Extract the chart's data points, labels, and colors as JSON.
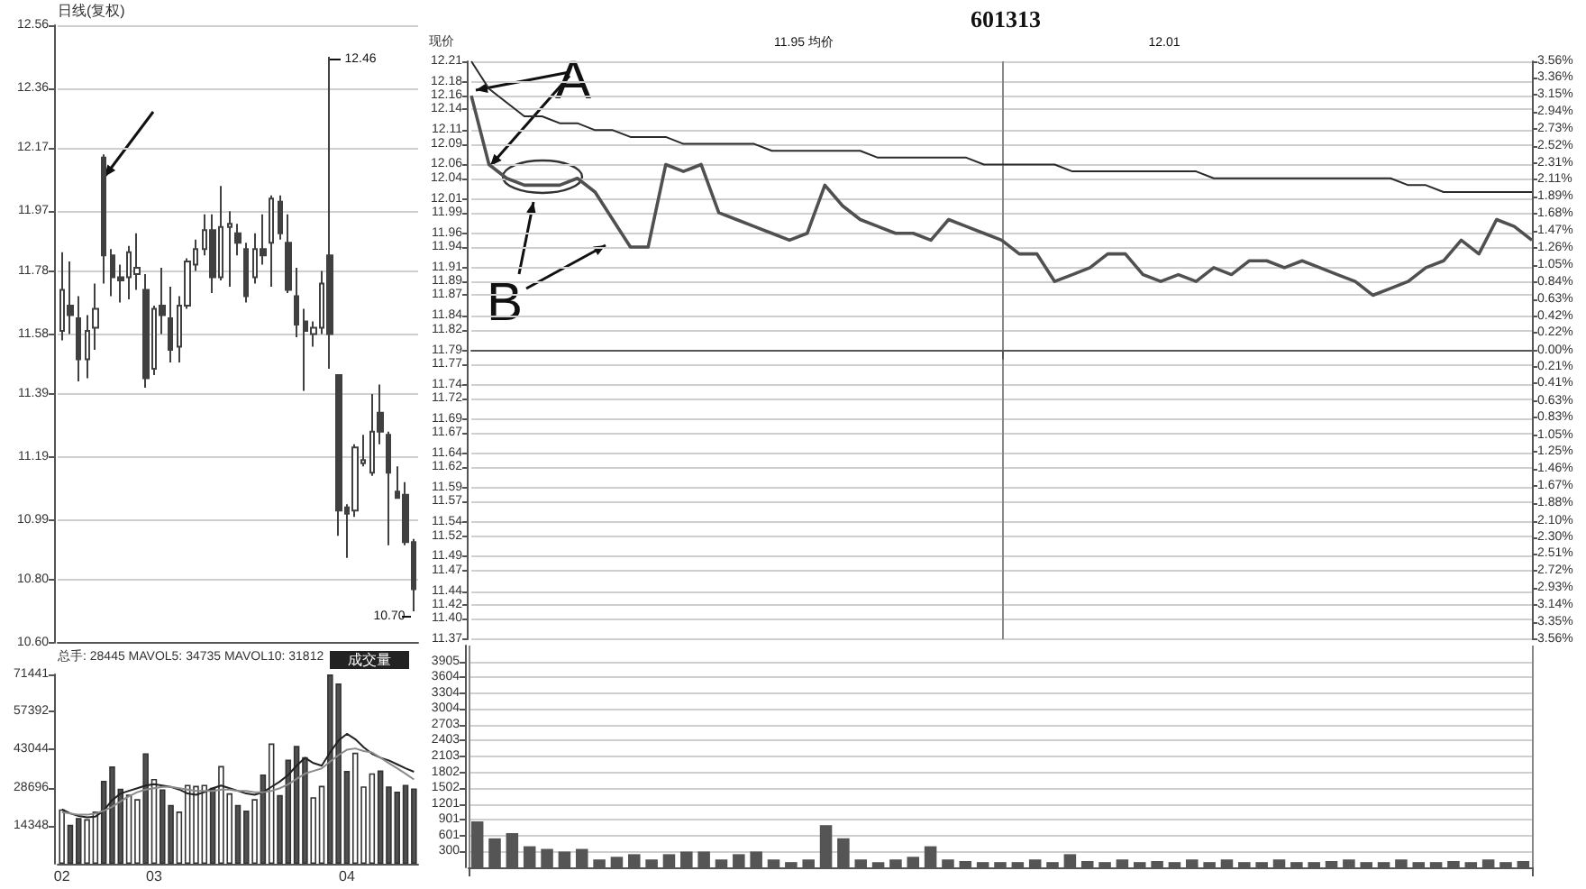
{
  "chart_data": [
    {
      "type": "candlestick",
      "title": "日线(复权)",
      "tick_labels": "y",
      "grid": "y",
      "categories": [
        "02",
        null,
        null,
        null,
        null,
        null,
        null,
        null,
        null,
        null,
        null,
        "03",
        null,
        null,
        null,
        null,
        null,
        null,
        null,
        null,
        null,
        null,
        null,
        null,
        null,
        null,
        null,
        null,
        null,
        null,
        null,
        null,
        null,
        null,
        "04",
        null,
        null,
        null,
        null,
        null,
        null,
        null,
        null
      ],
      "ylim": [
        10.6,
        12.56
      ],
      "yticks": [
        {
          "value": 10.6,
          "label": "10.60"
        },
        {
          "value": 10.8,
          "label": "10.80"
        },
        10.99,
        11.19,
        11.39,
        11.58,
        11.78,
        11.97,
        12.17,
        12.36,
        12.56
      ],
      "annotations": [
        "12.46",
        "10.70"
      ],
      "series": [
        {
          "type": "candlestick",
          "color": "#404040",
          "ohlc": [
            [
              11.59,
              11.84,
              11.56,
              11.72
            ],
            [
              11.67,
              11.81,
              11.58,
              11.64
            ],
            [
              11.63,
              11.7,
              11.43,
              11.5
            ],
            [
              11.5,
              11.64,
              11.44,
              11.59
            ],
            [
              11.6,
              11.74,
              11.53,
              11.66
            ],
            [
              12.14,
              12.15,
              11.74,
              11.83
            ],
            [
              11.83,
              11.85,
              11.7,
              11.76
            ],
            [
              11.76,
              11.8,
              11.68,
              11.75
            ],
            [
              11.76,
              11.86,
              11.69,
              11.84
            ],
            [
              11.77,
              11.9,
              11.72,
              11.79
            ],
            [
              11.72,
              11.77,
              11.41,
              11.44
            ],
            [
              11.47,
              11.67,
              11.45,
              11.66
            ],
            [
              11.67,
              11.79,
              11.58,
              11.64
            ],
            [
              11.63,
              11.73,
              11.49,
              11.53
            ],
            [
              11.54,
              11.7,
              11.49,
              11.67
            ],
            [
              11.67,
              11.82,
              11.66,
              11.81
            ],
            [
              11.8,
              11.88,
              11.78,
              11.85
            ],
            [
              11.85,
              11.96,
              11.83,
              11.91
            ],
            [
              11.91,
              11.96,
              11.71,
              11.76
            ],
            [
              11.76,
              12.05,
              11.75,
              11.92
            ],
            [
              11.92,
              11.97,
              11.73,
              11.93
            ],
            [
              11.9,
              11.93,
              11.83,
              11.87
            ],
            [
              11.85,
              11.87,
              11.68,
              11.7
            ],
            [
              11.76,
              11.9,
              11.74,
              11.85
            ],
            [
              11.85,
              11.96,
              11.8,
              11.83
            ],
            [
              11.87,
              12.02,
              11.73,
              12.01
            ],
            [
              12.0,
              12.02,
              11.88,
              11.9
            ],
            [
              11.87,
              11.96,
              11.71,
              11.72
            ],
            [
              11.7,
              11.79,
              11.57,
              11.61
            ],
            [
              11.62,
              11.66,
              11.4,
              11.59
            ],
            [
              11.58,
              11.62,
              11.54,
              11.6
            ],
            [
              11.6,
              11.78,
              11.58,
              11.74
            ],
            [
              11.83,
              12.46,
              11.47,
              11.58
            ],
            [
              11.45,
              11.45,
              10.94,
              11.02
            ],
            [
              11.03,
              11.04,
              10.87,
              11.01
            ],
            [
              11.02,
              11.23,
              11.0,
              11.22
            ],
            [
              11.17,
              11.26,
              11.16,
              11.18
            ],
            [
              11.14,
              11.39,
              11.13,
              11.27
            ],
            [
              11.33,
              11.42,
              11.23,
              11.27
            ],
            [
              11.26,
              11.27,
              10.91,
              11.14
            ],
            [
              11.08,
              11.16,
              11.06,
              11.06
            ],
            [
              11.07,
              11.11,
              10.91,
              10.92
            ],
            [
              10.92,
              10.93,
              10.7,
              10.77
            ]
          ]
        }
      ]
    },
    {
      "type": "bar",
      "subtitle": "总手: 28445 MAVOL5: 34735 MAVOL10: 31812",
      "annotations": [
        "成交量"
      ],
      "marker": "none",
      "categories": [
        "02",
        null,
        null,
        null,
        null,
        null,
        null,
        null,
        null,
        null,
        null,
        "03",
        null,
        null,
        null,
        null,
        null,
        null,
        null,
        null,
        null,
        null,
        null,
        null,
        null,
        null,
        null,
        null,
        null,
        null,
        null,
        null,
        null,
        null,
        "04",
        null,
        null,
        null,
        null,
        null,
        null,
        null,
        null
      ],
      "ylim": [
        0,
        71441
      ],
      "yticks": [
        14348,
        28696,
        43044,
        57392,
        71441
      ],
      "series": [
        {
          "type": "bar",
          "colors": [
            "#ffffff",
            "#505050",
            "#505050",
            "#ffffff",
            "#ffffff",
            "#505050",
            "#505050",
            "#505050",
            "#ffffff",
            "#ffffff",
            "#505050",
            "#ffffff",
            "#505050",
            "#505050",
            "#ffffff",
            "#ffffff",
            "#ffffff",
            "#ffffff",
            "#505050",
            "#ffffff",
            "#ffffff",
            "#505050",
            "#505050",
            "#ffffff",
            "#505050",
            "#ffffff",
            "#505050",
            "#505050",
            "#505050",
            "#505050",
            "#ffffff",
            "#ffffff",
            "#505050",
            "#505050",
            "#505050",
            "#ffffff",
            "#ffffff",
            "#ffffff",
            "#505050",
            "#505050",
            "#505050",
            "#505050",
            "#505050"
          ],
          "values": [
            20500,
            14700,
            17300,
            16800,
            19700,
            31300,
            36700,
            28300,
            26100,
            24400,
            41700,
            32000,
            28100,
            22200,
            19700,
            29800,
            29400,
            29800,
            28700,
            36900,
            26600,
            22200,
            20100,
            24400,
            33700,
            45400,
            25900,
            39300,
            44500,
            40200,
            25100,
            29400,
            71400,
            68000,
            35000,
            41900,
            29200,
            34100,
            35200,
            29200,
            27200,
            29800,
            28400
          ]
        },
        {
          "type": "line",
          "color": "#222222",
          "values": [
            20500,
            19000,
            18000,
            17500,
            17800,
            20000,
            24000,
            26500,
            27500,
            28500,
            29500,
            30000,
            29500,
            29000,
            28000,
            26500,
            26000,
            27000,
            28500,
            29500,
            28500,
            27500,
            26500,
            26000,
            27000,
            29000,
            31000,
            33500,
            37000,
            40000,
            38000,
            37000,
            42000,
            46500,
            49000,
            47000,
            44000,
            41500,
            40000,
            39000,
            37500,
            36000,
            34700
          ]
        },
        {
          "type": "line",
          "color": "#8a8a8a",
          "values": [
            19500,
            19000,
            18500,
            18500,
            19000,
            20000,
            21500,
            23500,
            25500,
            27000,
            28000,
            28500,
            29000,
            29000,
            28500,
            28000,
            27500,
            27500,
            27500,
            28000,
            28000,
            27500,
            27500,
            27000,
            27000,
            27500,
            28500,
            30000,
            32000,
            34000,
            35000,
            36000,
            38500,
            41000,
            43000,
            43500,
            42500,
            42000,
            40000,
            38000,
            36000,
            34000,
            31800
          ]
        }
      ]
    },
    {
      "type": "line",
      "title": "601313",
      "ylabel": "现价",
      "marker": "none",
      "grid": true,
      "annotations": [
        "11.95 均价",
        "12.01",
        "A",
        "B"
      ],
      "categories": [
        null,
        null,
        null,
        null,
        null,
        null,
        null,
        null,
        null,
        null,
        null,
        null,
        null,
        null,
        null,
        null,
        null,
        null,
        null,
        null,
        null,
        null,
        null,
        null,
        null,
        null,
        null,
        null,
        null,
        null,
        null,
        null,
        null,
        null,
        null,
        null,
        null,
        null,
        null,
        null,
        null,
        null,
        null,
        null,
        null,
        null,
        null,
        null,
        null,
        null,
        null,
        null,
        null,
        null,
        null,
        null,
        null,
        null,
        null,
        null,
        null
      ],
      "ylim": [
        11.37,
        12.21
      ],
      "yticks": [
        11.37,
        {
          "value": 11.4,
          "label": "11.40"
        },
        11.42,
        11.44,
        11.47,
        11.49,
        11.52,
        11.54,
        11.57,
        11.59,
        11.62,
        11.64,
        11.67,
        11.69,
        11.72,
        11.74,
        11.77,
        11.79,
        11.82,
        11.84,
        11.87,
        11.89,
        11.91,
        11.94,
        11.96,
        11.99,
        12.01,
        12.04,
        12.06,
        12.09,
        12.11,
        12.14,
        12.16,
        12.18,
        12.21
      ],
      "y2lim": [
        -3.56,
        3.56
      ],
      "y2ticks": [
        {
          "value": -3.56,
          "label": "3.56%"
        },
        {
          "value": -3.35,
          "label": "3.35%"
        },
        {
          "value": -3.14,
          "label": "3.14%"
        },
        {
          "value": -2.93,
          "label": "2.93%"
        },
        {
          "value": -2.72,
          "label": "2.72%"
        },
        {
          "value": -2.51,
          "label": "2.51%"
        },
        {
          "value": -2.3,
          "label": "2.30%"
        },
        {
          "value": -2.1,
          "label": "2.10%"
        },
        {
          "value": -1.88,
          "label": "1.88%"
        },
        {
          "value": -1.67,
          "label": "1.67%"
        },
        {
          "value": -1.46,
          "label": "1.46%"
        },
        {
          "value": -1.25,
          "label": "1.25%"
        },
        {
          "value": -1.05,
          "label": "1.05%"
        },
        {
          "value": -0.83,
          "label": "0.83%"
        },
        {
          "value": -0.63,
          "label": "0.63%"
        },
        {
          "value": -0.41,
          "label": "0.41%"
        },
        {
          "value": -0.21,
          "label": "0.21%"
        },
        {
          "value": 0,
          "label": "0.00%"
        },
        {
          "value": 0.22,
          "label": "0.22%"
        },
        {
          "value": 0.42,
          "label": "0.42%"
        },
        {
          "value": 0.63,
          "label": "0.63%"
        },
        {
          "value": 0.84,
          "label": "0.84%"
        },
        {
          "value": 1.05,
          "label": "1.05%"
        },
        {
          "value": 1.26,
          "label": "1.26%"
        },
        {
          "value": 1.47,
          "label": "1.47%"
        },
        {
          "value": 1.68,
          "label": "1.68%"
        },
        {
          "value": 1.89,
          "label": "1.89%"
        },
        {
          "value": 2.11,
          "label": "2.11%"
        },
        {
          "value": 2.31,
          "label": "2.31%"
        },
        {
          "value": 2.52,
          "label": "2.52%"
        },
        {
          "value": 2.73,
          "label": "2.73%"
        },
        {
          "value": 2.94,
          "label": "2.94%"
        },
        {
          "value": 3.15,
          "label": "3.15%"
        },
        {
          "value": 3.36,
          "label": "3.36%"
        },
        {
          "value": 3.56,
          "label": "3.56%"
        }
      ],
      "series": [
        {
          "color": "#505050",
          "values": [
            12.16,
            12.06,
            12.04,
            12.03,
            12.03,
            12.03,
            12.04,
            12.02,
            11.98,
            11.94,
            11.94,
            12.06,
            12.05,
            12.06,
            11.99,
            11.98,
            11.97,
            11.96,
            11.95,
            11.96,
            12.03,
            12.0,
            11.98,
            11.97,
            11.96,
            11.96,
            11.95,
            11.98,
            11.97,
            11.96,
            11.95,
            11.93,
            11.93,
            11.89,
            11.9,
            11.91,
            11.93,
            11.93,
            11.9,
            11.89,
            11.9,
            11.89,
            11.91,
            11.9,
            11.92,
            11.92,
            11.91,
            11.92,
            11.91,
            11.9,
            11.89,
            11.87,
            11.88,
            11.89,
            11.91,
            11.92,
            11.95,
            11.93,
            11.98,
            11.97,
            11.95
          ]
        },
        {
          "color": "#2a2a2a",
          "values": [
            12.21,
            12.17,
            12.15,
            12.13,
            12.13,
            12.12,
            12.12,
            12.11,
            12.11,
            12.1,
            12.1,
            12.1,
            12.09,
            12.09,
            12.09,
            12.09,
            12.09,
            12.08,
            12.08,
            12.08,
            12.08,
            12.08,
            12.08,
            12.07,
            12.07,
            12.07,
            12.07,
            12.07,
            12.07,
            12.06,
            12.06,
            12.06,
            12.06,
            12.06,
            12.05,
            12.05,
            12.05,
            12.05,
            12.05,
            12.05,
            12.05,
            12.05,
            12.04,
            12.04,
            12.04,
            12.04,
            12.04,
            12.04,
            12.04,
            12.04,
            12.04,
            12.04,
            12.04,
            12.03,
            12.03,
            12.02,
            12.02,
            12.02,
            12.02,
            12.02,
            12.02
          ]
        }
      ]
    },
    {
      "type": "bar",
      "grid": true,
      "categories": [
        null,
        null,
        null,
        null,
        null,
        null,
        null,
        null,
        null,
        null,
        null,
        null,
        null,
        null,
        null,
        null,
        null,
        null,
        null,
        null,
        null,
        null,
        null,
        null,
        null,
        null,
        null,
        null,
        null,
        null,
        null,
        null,
        null,
        null,
        null,
        null,
        null,
        null,
        null,
        null,
        null,
        null,
        null,
        null,
        null,
        null,
        null,
        null,
        null,
        null,
        null,
        null,
        null,
        null,
        null,
        null,
        null,
        null,
        null,
        null,
        null
      ],
      "ylim": [
        0,
        4205
      ],
      "yticks": [
        300,
        601,
        901,
        1201,
        1502,
        1802,
        2103,
        2403,
        2703,
        3004,
        3304,
        3604,
        3905
      ],
      "series": [
        {
          "color": "#555555",
          "values": [
            870,
            550,
            650,
            400,
            350,
            300,
            350,
            150,
            200,
            250,
            150,
            250,
            300,
            300,
            150,
            250,
            300,
            150,
            100,
            150,
            800,
            550,
            150,
            100,
            150,
            200,
            400,
            150,
            120,
            100,
            100,
            100,
            150,
            100,
            250,
            120,
            100,
            150,
            100,
            120,
            100,
            150,
            100,
            150,
            100,
            100,
            150,
            100,
            100,
            120,
            150,
            100,
            100,
            150,
            100,
            100,
            120,
            100,
            150,
            100,
            120
          ]
        }
      ]
    }
  ]
}
